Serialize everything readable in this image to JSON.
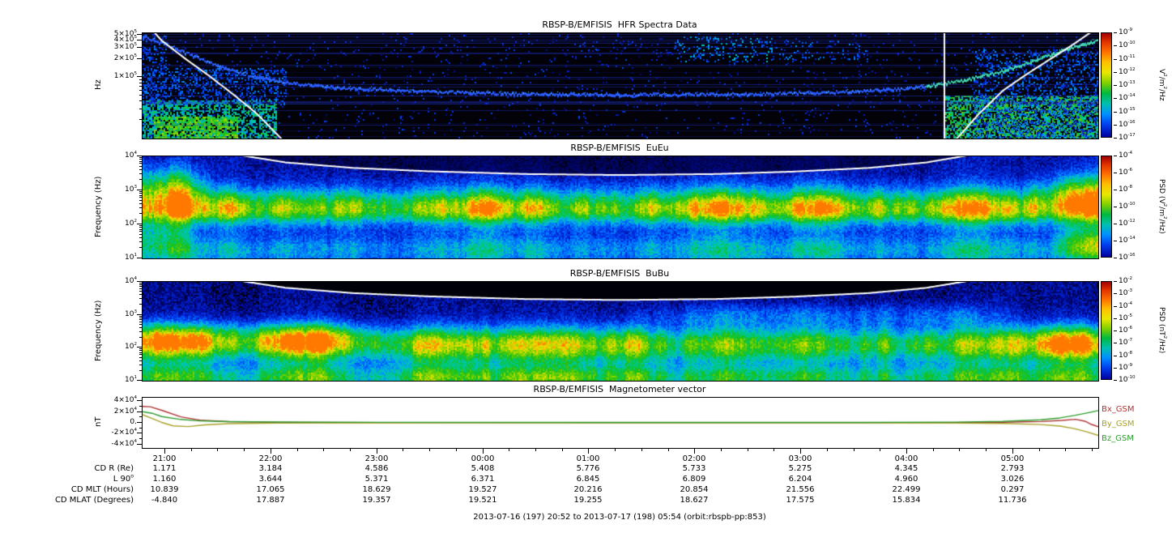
{
  "figure": {
    "footer": "2013-07-16 (197) 20:52 to 2013-07-17 (198) 05:54 (orbit:rbspb-pp:853)"
  },
  "palette": [
    [
      0,
      "#000018"
    ],
    [
      0.1,
      "#000890"
    ],
    [
      0.22,
      "#0030e8"
    ],
    [
      0.35,
      "#0080ff"
    ],
    [
      0.45,
      "#00c0d0"
    ],
    [
      0.55,
      "#00c878"
    ],
    [
      0.65,
      "#18c018"
    ],
    [
      0.78,
      "#88d400"
    ],
    [
      0.88,
      "#f0e000"
    ],
    [
      1,
      "#ff7800"
    ]
  ],
  "time_axis": {
    "start": "2013-07-16 20:52",
    "end": "2013-07-17 05:54",
    "ticks": [
      {
        "label": "21:00",
        "pos": 0.0237
      },
      {
        "label": "22:00",
        "pos": 0.1346
      },
      {
        "label": "23:00",
        "pos": 0.2455
      },
      {
        "label": "00:00",
        "pos": 0.3564
      },
      {
        "label": "01:00",
        "pos": 0.4673
      },
      {
        "label": "02:00",
        "pos": 0.5782
      },
      {
        "label": "03:00",
        "pos": 0.6891
      },
      {
        "label": "04:00",
        "pos": 0.8
      },
      {
        "label": "05:00",
        "pos": 0.9109
      }
    ]
  },
  "ephemeris": {
    "rows": [
      {
        "label": "CD R (Re)",
        "values": [
          "1.171",
          "3.184",
          "4.586",
          "5.408",
          "5.776",
          "5.733",
          "5.275",
          "4.345",
          "2.793"
        ]
      },
      {
        "label": "L 90^o",
        "values": [
          "1.160",
          "3.644",
          "5.371",
          "6.371",
          "6.845",
          "6.809",
          "6.204",
          "4.960",
          "3.026"
        ]
      },
      {
        "label": "CD MLT (Hours)",
        "values": [
          "10.839",
          "17.065",
          "18.629",
          "19.527",
          "20.216",
          "20.854",
          "21.556",
          "22.499",
          "0.297"
        ]
      },
      {
        "label": "CD MLAT (Degrees)",
        "values": [
          "-4.840",
          "17.887",
          "19.357",
          "19.521",
          "19.255",
          "18.627",
          "17.575",
          "15.834",
          "11.736"
        ]
      }
    ]
  },
  "chart_data": [
    {
      "type": "heatmap",
      "title": "RBSP-B/EMFISIS  HFR Spectra Data",
      "ylabel": "Hz",
      "ylog": [
        4.0,
        5.72
      ],
      "yticks": [
        {
          "v": 500000,
          "label": "5×10^5"
        },
        {
          "v": 400000,
          "label": "4×10^5"
        },
        {
          "v": 300000,
          "label": "3×10^5"
        },
        {
          "v": 200000,
          "label": "2×10^5"
        },
        {
          "v": 100000,
          "label": "1×10^5"
        }
      ],
      "colorbar": {
        "label": "V^2/m^2/Hz",
        "ticks": [
          "10^-9",
          "10^-10",
          "10^-11",
          "10^-12",
          "10^-13",
          "10^-14",
          "10^-15",
          "10^-16",
          "10^-17"
        ]
      },
      "white_curves": [
        [
          [
            0,
            5.95
          ],
          [
            0.02,
            5.6
          ],
          [
            0.045,
            5.3
          ],
          [
            0.07,
            5.02
          ],
          [
            0.095,
            4.72
          ],
          [
            0.12,
            4.4
          ],
          [
            0.145,
            4.0
          ],
          [
            0.16,
            3.7
          ]
        ],
        [
          [
            0.838,
            3.7
          ],
          [
            0.852,
            4.0
          ],
          [
            0.875,
            4.4
          ],
          [
            0.9,
            4.78
          ],
          [
            0.925,
            5.05
          ],
          [
            0.95,
            5.3
          ],
          [
            0.975,
            5.55
          ],
          [
            1.0,
            5.82
          ]
        ]
      ],
      "trace": {
        "name": "upper-hybrid-resonance-line",
        "xsplit": 0.82,
        "color1": "#2a5cff",
        "color2": "#3fd9b0",
        "points": [
          [
            0,
            5.68
          ],
          [
            0.025,
            5.55
          ],
          [
            0.05,
            5.38
          ],
          [
            0.08,
            5.2
          ],
          [
            0.11,
            5.05
          ],
          [
            0.15,
            4.93
          ],
          [
            0.2,
            4.85
          ],
          [
            0.28,
            4.79
          ],
          [
            0.38,
            4.75
          ],
          [
            0.5,
            4.73
          ],
          [
            0.62,
            4.74
          ],
          [
            0.72,
            4.77
          ],
          [
            0.8,
            4.83
          ],
          [
            0.855,
            4.95
          ],
          [
            0.9,
            5.12
          ],
          [
            0.935,
            5.3
          ],
          [
            0.965,
            5.47
          ],
          [
            1.0,
            5.62
          ]
        ]
      },
      "render": {
        "seed": 11,
        "bg": "#020208",
        "noise": 0,
        "hlines": {
          "count": 26,
          "color": "#2233cc"
        },
        "speckle": [
          {
            "x0": 0,
            "x1": 1,
            "l0": 4,
            "l1": 5.72,
            "density": 0.04,
            "t0": 0.08,
            "t1": 0.26
          },
          {
            "x0": 0,
            "x1": 0.025,
            "l0": 4,
            "l1": 5.7,
            "density": 0.3,
            "t0": 0.12,
            "t1": 0.35
          },
          {
            "x0": 0,
            "x1": 0.15,
            "l0": 4.55,
            "l1": 5.15,
            "density": 0.3,
            "t0": 0.14,
            "t1": 0.38
          },
          {
            "x0": 0,
            "x1": 0.14,
            "l0": 4.0,
            "l1": 4.62,
            "density": 0.55,
            "t0": 0.35,
            "t1": 0.68
          },
          {
            "x0": 0.012,
            "x1": 0.1,
            "l0": 4.0,
            "l1": 4.35,
            "density": 0.7,
            "t0": 0.55,
            "t1": 0.82
          },
          {
            "x0": 0.84,
            "x1": 1,
            "l0": 4.0,
            "l1": 4.7,
            "density": 0.6,
            "t0": 0.38,
            "t1": 0.75
          },
          {
            "x0": 0.87,
            "x1": 1,
            "l0": 4.0,
            "l1": 5.45,
            "density": 0.28,
            "t0": 0.12,
            "t1": 0.4
          },
          {
            "x0": 0.56,
            "x1": 0.66,
            "l0": 5.25,
            "l1": 5.66,
            "density": 0.2,
            "t0": 0.18,
            "t1": 0.5
          },
          {
            "x0": 0.66,
            "x1": 0.76,
            "l0": 5.3,
            "l1": 5.6,
            "density": 0.1,
            "t0": 0.15,
            "t1": 0.4
          },
          {
            "x0": 0.45,
            "x1": 0.56,
            "l0": 5.35,
            "l1": 5.6,
            "density": 0.06,
            "t0": 0.12,
            "t1": 0.3
          }
        ]
      }
    },
    {
      "type": "heatmap",
      "title": "RBSP-B/EMFISIS  EuEu",
      "ylabel": "Frequency (Hz)",
      "ylog": [
        1,
        4
      ],
      "yticks": [
        {
          "v": 10000,
          "label": "10^4"
        },
        {
          "v": 1000,
          "label": "10^3"
        },
        {
          "v": 100,
          "label": "10^2"
        },
        {
          "v": 10,
          "label": "10^1"
        }
      ],
      "colorbar": {
        "label": "PSD (V^2/m^2/Hz)",
        "ticks": [
          "10^-4",
          "10^-6",
          "10^-8",
          "10^-10",
          "10^-12",
          "10^-14",
          "10^-16"
        ]
      },
      "white_curves": [
        [
          [
            0.105,
            4.02
          ],
          [
            0.15,
            3.82
          ],
          [
            0.22,
            3.66
          ],
          [
            0.3,
            3.56
          ],
          [
            0.4,
            3.48
          ],
          [
            0.5,
            3.45
          ],
          [
            0.6,
            3.48
          ],
          [
            0.68,
            3.55
          ],
          [
            0.76,
            3.66
          ],
          [
            0.82,
            3.82
          ],
          [
            0.862,
            4.02
          ]
        ]
      ],
      "render": {
        "seed": 23,
        "bg": "#000014",
        "noise": 0.16,
        "dim_above_curve": 0.38,
        "bands": [
          {
            "c": 2.5,
            "s": 6,
            "p": 0.14
          },
          {
            "c": 2.55,
            "s": 0.55,
            "p": 0.6
          },
          {
            "c": 2.4,
            "s": 0.28,
            "p": 0.14
          },
          {
            "c": 1.25,
            "s": 0.45,
            "p": 0.3
          },
          {
            "c": 3.15,
            "s": 0.6,
            "p": 0.42,
            "x1": 0.08,
            "xf": 0.05
          },
          {
            "c": 1.7,
            "s": 0.7,
            "p": 0.25,
            "x1": 0.06,
            "xf": 0.04
          },
          {
            "c": 3.0,
            "s": 0.55,
            "p": 0.35,
            "x0": 0.92,
            "xf": 0.05
          },
          {
            "c": 1.5,
            "s": 0.5,
            "p": 0.3,
            "x0": 0.94,
            "xf": 0.04
          }
        ]
      }
    },
    {
      "type": "heatmap",
      "title": "RBSP-B/EMFISIS  BuBu",
      "ylabel": "Frequency (Hz)",
      "ylog": [
        1,
        4
      ],
      "yticks": [
        {
          "v": 10000,
          "label": "10^4"
        },
        {
          "v": 1000,
          "label": "10^3"
        },
        {
          "v": 100,
          "label": "10^2"
        },
        {
          "v": 10,
          "label": "10^1"
        }
      ],
      "colorbar": {
        "label": "PSD (nT^2/Hz)",
        "ticks": [
          "10^-2",
          "10^-3",
          "10^-4",
          "10^-5",
          "10^-6",
          "10^-7",
          "10^-8",
          "10^-9",
          "10^-10"
        ]
      },
      "white_curves": [
        [
          [
            0.105,
            4.02
          ],
          [
            0.15,
            3.82
          ],
          [
            0.22,
            3.66
          ],
          [
            0.3,
            3.56
          ],
          [
            0.4,
            3.48
          ],
          [
            0.5,
            3.45
          ],
          [
            0.6,
            3.48
          ],
          [
            0.68,
            3.55
          ],
          [
            0.76,
            3.66
          ],
          [
            0.82,
            3.82
          ],
          [
            0.862,
            4.02
          ]
        ]
      ],
      "render": {
        "seed": 37,
        "bg": "#000008",
        "noise": 0.16,
        "mask_above_curve": true,
        "bands": [
          {
            "c": 2.0,
            "s": 6,
            "p": 0.1
          },
          {
            "c": 2.1,
            "s": 0.55,
            "p": 0.62
          },
          {
            "c": 1.1,
            "s": 0.4,
            "p": 0.5
          },
          {
            "c": 2.35,
            "s": 0.45,
            "p": 0.3,
            "x1": 0.27,
            "xf": 0.06
          },
          {
            "c": 3.0,
            "s": 0.35,
            "p": 0.2,
            "x0": 0.5,
            "x1": 0.93,
            "xf": 0.08
          },
          {
            "c": 2.2,
            "s": 0.5,
            "p": 0.22,
            "x0": 0.9,
            "xf": 0.05
          }
        ]
      }
    },
    {
      "type": "line",
      "title": "RBSP-B/EMFISIS  Magnetometer vector",
      "ylabel": "nT",
      "yrange": [
        -46000,
        46000
      ],
      "yticks": [
        {
          "v": 40000,
          "label": "4×10^4"
        },
        {
          "v": 20000,
          "label": "2×10^4"
        },
        {
          "v": 0,
          "label": "0."
        },
        {
          "v": -20000,
          "label": "-2×10^4"
        },
        {
          "v": -40000,
          "label": "-4×10^4"
        }
      ],
      "series": [
        {
          "name": "Bx_GSM",
          "color": "#b03434",
          "points": [
            [
              0,
              30000
            ],
            [
              0.008,
              29500
            ],
            [
              0.02,
              23000
            ],
            [
              0.04,
              11000
            ],
            [
              0.06,
              5000
            ],
            [
              0.09,
              2200
            ],
            [
              0.14,
              1000
            ],
            [
              0.25,
              500
            ],
            [
              0.5,
              350
            ],
            [
              0.75,
              400
            ],
            [
              0.85,
              600
            ],
            [
              0.9,
              1100
            ],
            [
              0.94,
              2400
            ],
            [
              0.962,
              4500
            ],
            [
              0.976,
              6500
            ],
            [
              0.986,
              3000
            ],
            [
              0.993,
              -3000
            ],
            [
              1,
              -7000
            ]
          ]
        },
        {
          "name": "By_GSM",
          "color": "#a8a22a",
          "points": [
            [
              0,
              15000
            ],
            [
              0.01,
              8000
            ],
            [
              0.02,
              800
            ],
            [
              0.032,
              -5500
            ],
            [
              0.048,
              -6800
            ],
            [
              0.065,
              -3800
            ],
            [
              0.09,
              -1500
            ],
            [
              0.14,
              -600
            ],
            [
              0.3,
              -250
            ],
            [
              0.5,
              -150
            ],
            [
              0.75,
              -250
            ],
            [
              0.85,
              -500
            ],
            [
              0.9,
              -1200
            ],
            [
              0.94,
              -3200
            ],
            [
              0.96,
              -6000
            ],
            [
              0.975,
              -10500
            ],
            [
              0.988,
              -16500
            ],
            [
              1,
              -23000
            ]
          ]
        },
        {
          "name": "Bz_GSM",
          "color": "#2f9e2f",
          "points": [
            [
              0,
              20500
            ],
            [
              0.01,
              17500
            ],
            [
              0.02,
              11500
            ],
            [
              0.04,
              6200
            ],
            [
              0.06,
              3600
            ],
            [
              0.09,
              2300
            ],
            [
              0.14,
              1400
            ],
            [
              0.25,
              900
            ],
            [
              0.5,
              650
            ],
            [
              0.75,
              800
            ],
            [
              0.85,
              1300
            ],
            [
              0.9,
              2600
            ],
            [
              0.94,
              5600
            ],
            [
              0.96,
              9000
            ],
            [
              0.975,
              13500
            ],
            [
              0.988,
              18000
            ],
            [
              1,
              22500
            ]
          ]
        }
      ]
    }
  ]
}
